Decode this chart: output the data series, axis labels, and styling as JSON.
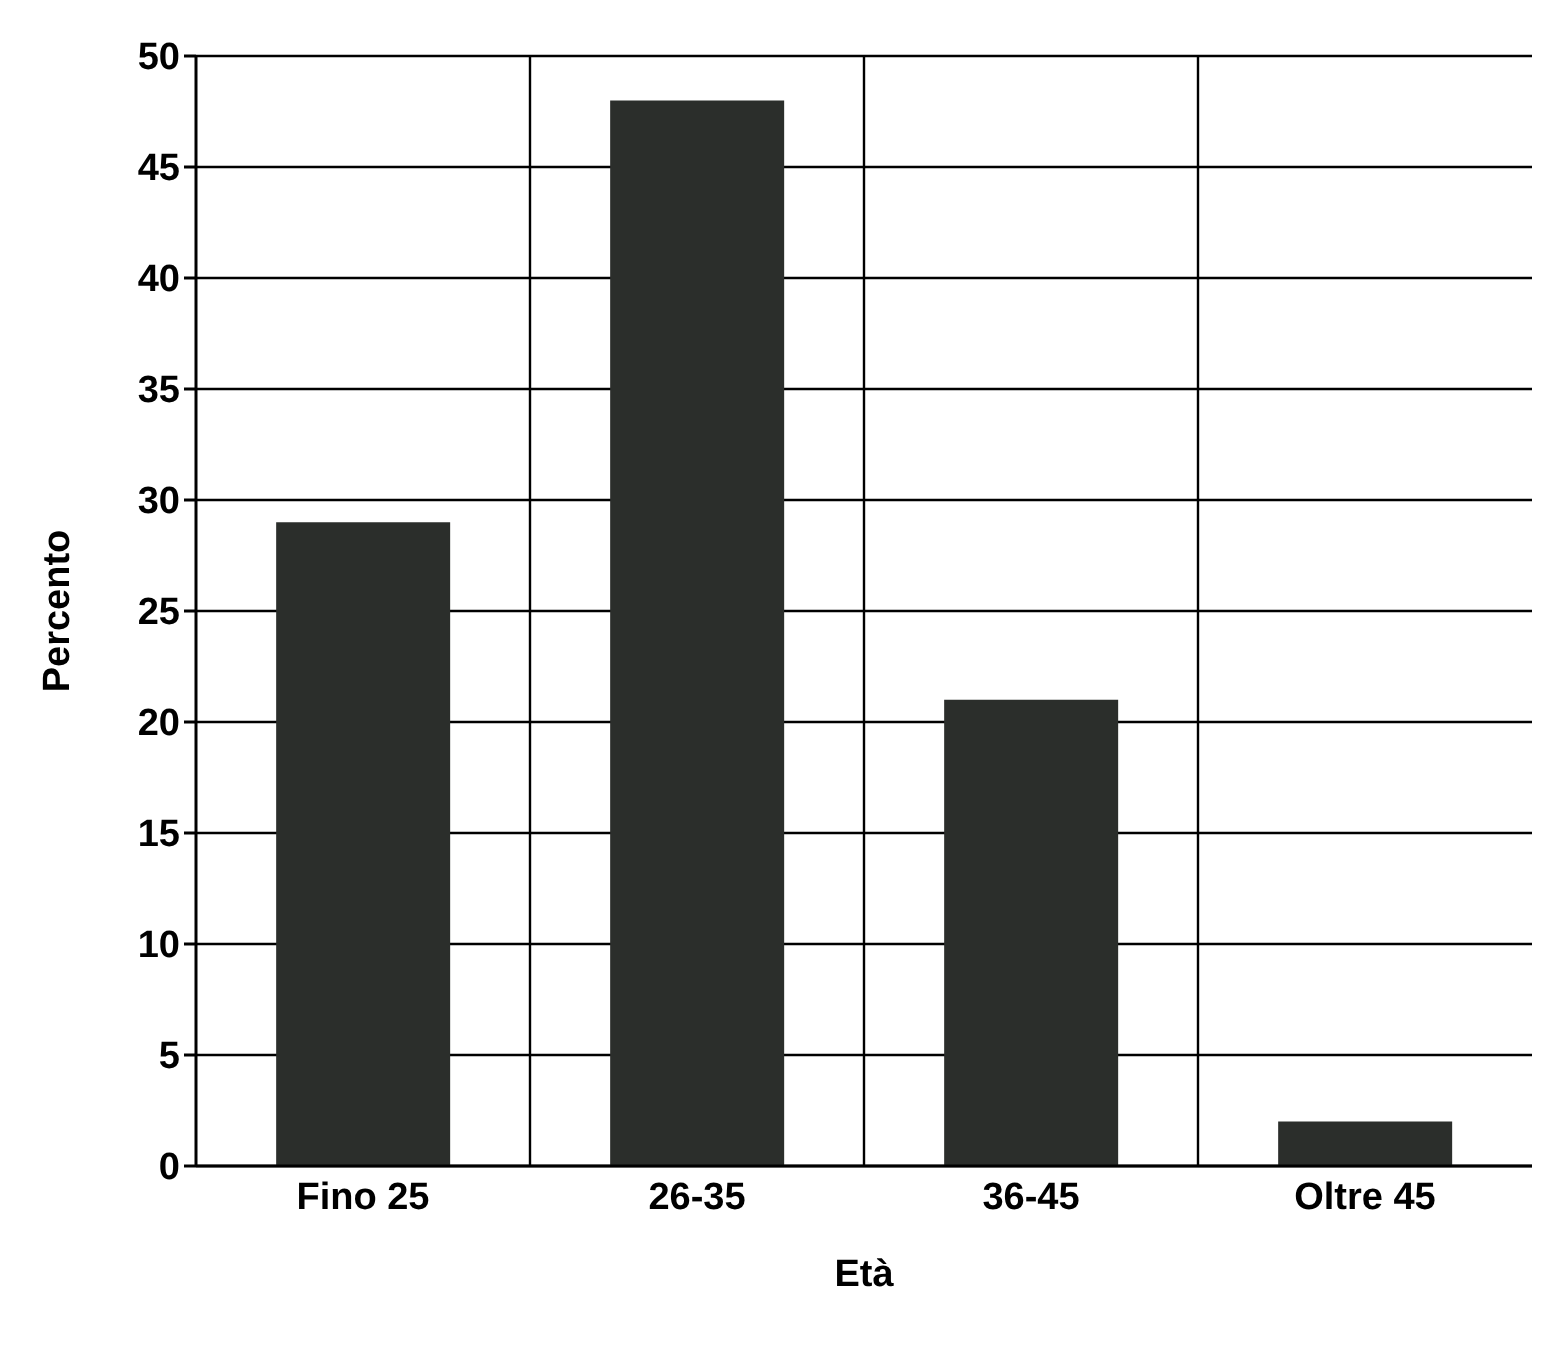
{
  "chart_data": {
    "type": "bar",
    "xlabel": "Età",
    "ylabel": "Percento",
    "categories": [
      "Fino 25",
      "26-35",
      "36-45",
      "Oltre 45"
    ],
    "values": [
      29,
      48,
      21,
      2
    ],
    "color": "#2b2e2b",
    "ylim": [
      0,
      50
    ],
    "yticks": [
      0,
      5,
      10,
      15,
      20,
      25,
      30,
      35,
      40,
      45,
      50
    ],
    "grid": true
  }
}
